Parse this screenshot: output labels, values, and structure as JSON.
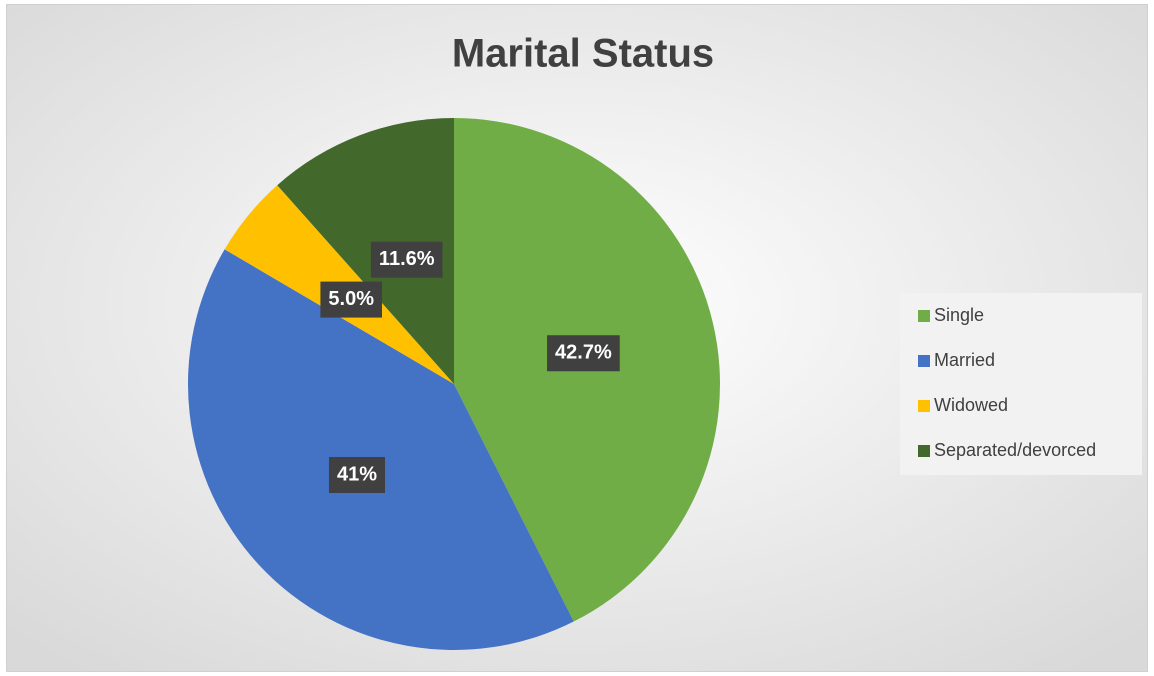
{
  "chart_data": {
    "type": "pie",
    "title": "Marital Status",
    "categories": [
      "Single",
      "Married",
      "Widowed",
      "Separated/devorced"
    ],
    "values": [
      42.7,
      41,
      5.0,
      11.6
    ],
    "value_labels": [
      "42.7%",
      "41%",
      "5.0%",
      "11.6%"
    ],
    "colors": [
      "#70ad47",
      "#4472c4",
      "#ffc000",
      "#43682b"
    ],
    "legend": "right"
  }
}
